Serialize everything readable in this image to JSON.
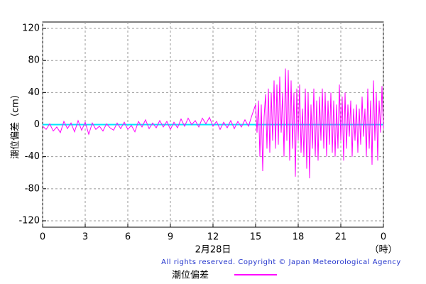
{
  "chart_data": {
    "type": "line",
    "y_label": "潮位偏差（cm）",
    "x_label": "2月28日",
    "x_unit": "（時）",
    "copyright": "All rights reserved. Copyright © Japan Meteorological Agency",
    "xlim": [
      0,
      24
    ],
    "ylim": [
      -128,
      128
    ],
    "xticks": [
      0,
      3,
      6,
      9,
      12,
      15,
      18,
      21,
      {
        "value": 24,
        "label": "0"
      }
    ],
    "yticks": [
      -120,
      -80,
      -40,
      0,
      40,
      80,
      120
    ],
    "grid": true,
    "zero_line": {
      "value": 0,
      "color": "#00e5ff"
    },
    "x": [
      0,
      0.25,
      0.5,
      0.75,
      1,
      1.25,
      1.5,
      1.75,
      2,
      2.25,
      2.5,
      2.75,
      3,
      3.25,
      3.5,
      3.75,
      4,
      4.25,
      4.5,
      4.75,
      5,
      5.25,
      5.5,
      5.75,
      6,
      6.25,
      6.5,
      6.75,
      7,
      7.25,
      7.5,
      7.75,
      8,
      8.25,
      8.5,
      8.75,
      9,
      9.25,
      9.5,
      9.75,
      10,
      10.25,
      10.5,
      10.75,
      11,
      11.25,
      11.5,
      11.75,
      12,
      12.25,
      12.5,
      12.75,
      13,
      13.25,
      13.5,
      13.75,
      14,
      14.25,
      14.5,
      14.75,
      15,
      15.1,
      15.2,
      15.3,
      15.4,
      15.5,
      15.6,
      15.7,
      15.8,
      15.9,
      16,
      16.1,
      16.2,
      16.3,
      16.4,
      16.5,
      16.6,
      16.7,
      16.8,
      16.9,
      17,
      17.1,
      17.2,
      17.3,
      17.4,
      17.5,
      17.6,
      17.7,
      17.8,
      17.9,
      18,
      18.1,
      18.2,
      18.3,
      18.4,
      18.5,
      18.6,
      18.7,
      18.8,
      18.9,
      19,
      19.1,
      19.2,
      19.3,
      19.4,
      19.5,
      19.6,
      19.7,
      19.8,
      19.9,
      20,
      20.1,
      20.2,
      20.3,
      20.4,
      20.5,
      20.6,
      20.7,
      20.8,
      20.9,
      21,
      21.1,
      21.2,
      21.3,
      21.4,
      21.5,
      21.6,
      21.7,
      21.8,
      21.9,
      22,
      22.1,
      22.2,
      22.3,
      22.4,
      22.5,
      22.6,
      22.7,
      22.8,
      22.9,
      23,
      23.1,
      23.2,
      23.3,
      23.4,
      23.5,
      23.6,
      23.7,
      23.8,
      23.9,
      24
    ],
    "series": [
      {
        "name": "潮位偏差",
        "color": "#ff00ff",
        "values": [
          -2,
          -6,
          1,
          -8,
          -3,
          -10,
          4,
          -5,
          2,
          -9,
          5,
          -7,
          3,
          -12,
          2,
          -6,
          -2,
          -8,
          1,
          -4,
          -7,
          2,
          -5,
          3,
          -6,
          -1,
          -9,
          4,
          -3,
          6,
          -5,
          2,
          -4,
          5,
          -3,
          4,
          -6,
          3,
          -4,
          7,
          -2,
          8,
          0,
          5,
          -3,
          8,
          1,
          9,
          -2,
          4,
          -6,
          3,
          -4,
          5,
          -5,
          4,
          -3,
          6,
          -2,
          12,
          25,
          -10,
          30,
          -40,
          25,
          -58,
          10,
          38,
          -30,
          45,
          -35,
          40,
          -20,
          55,
          -30,
          50,
          -25,
          60,
          -10,
          40,
          -40,
          70,
          -20,
          68,
          -45,
          55,
          -30,
          40,
          -65,
          45,
          -20,
          50,
          -35,
          20,
          -40,
          45,
          -55,
          40,
          -67,
          25,
          -30,
          45,
          -40,
          30,
          -45,
          35,
          -20,
          45,
          -30,
          40,
          -40,
          30,
          -25,
          40,
          -35,
          30,
          -40,
          25,
          -30,
          50,
          -20,
          35,
          -45,
          40,
          -30,
          25,
          -15,
          30,
          -40,
          20,
          -20,
          25,
          -35,
          20,
          -25,
          35,
          -15,
          20,
          -40,
          45,
          -30,
          30,
          -50,
          55,
          -20,
          40,
          -45,
          30,
          -10,
          48,
          -5
        ]
      }
    ]
  }
}
